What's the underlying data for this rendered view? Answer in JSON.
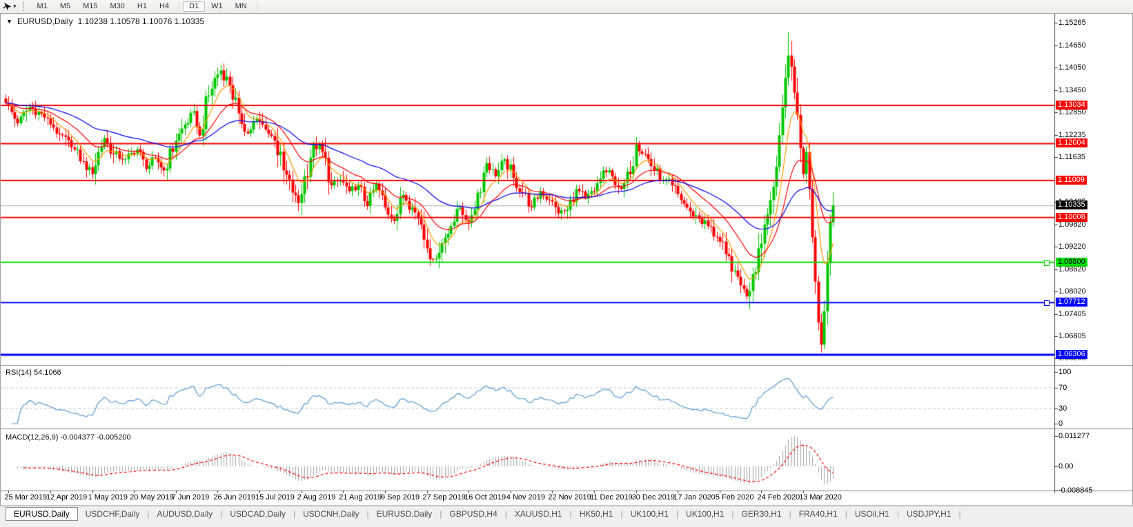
{
  "toolbar": {
    "cursor_tool_icon": "cursor-arrow",
    "dropdown_glyph": "▾",
    "timeframes": [
      "M1",
      "M5",
      "M15",
      "M30",
      "H1",
      "H4",
      "D1",
      "W1",
      "MN"
    ],
    "active_timeframe": "D1"
  },
  "window": {
    "collapse_icon": "▼",
    "title_symbol": "EURUSD,Daily",
    "title_ohlc": "1.10238 1.10578 1.10076 1.10335"
  },
  "price_axis": {
    "ticks": [
      "1.15265",
      "1.14650",
      "1.14050",
      "1.13450",
      "1.12850",
      "1.12235",
      "1.11635",
      "1.10435",
      "1.09820",
      "1.09220",
      "1.08620",
      "1.08020",
      "1.07405",
      "1.06805",
      "1.06205"
    ],
    "current_price_label": "1.10335",
    "current_price_bg": "#000000",
    "current_price_fg": "#ffffff"
  },
  "chart_data": {
    "type": "candlestick",
    "symbol": "EURUSD",
    "timeframe": "Daily",
    "candle_count": 278,
    "ylim": [
      1.0603,
      1.1551
    ],
    "up_color": "#00c800",
    "down_color": "#ff0000",
    "close_anchors": [
      [
        0,
        1.131
      ],
      [
        4,
        1.1255
      ],
      [
        8,
        1.13
      ],
      [
        14,
        1.1268
      ],
      [
        18,
        1.1225
      ],
      [
        22,
        1.119
      ],
      [
        26,
        1.1152
      ],
      [
        29,
        1.1118
      ],
      [
        31,
        1.1178
      ],
      [
        33,
        1.1215
      ],
      [
        36,
        1.1172
      ],
      [
        40,
        1.1158
      ],
      [
        44,
        1.1185
      ],
      [
        47,
        1.1132
      ],
      [
        50,
        1.1162
      ],
      [
        53,
        1.1128
      ],
      [
        57,
        1.1208
      ],
      [
        60,
        1.1252
      ],
      [
        63,
        1.1288
      ],
      [
        65,
        1.1222
      ],
      [
        68,
        1.133
      ],
      [
        70,
        1.1378
      ],
      [
        72,
        1.1398
      ],
      [
        75,
        1.1358
      ],
      [
        78,
        1.1282
      ],
      [
        81,
        1.1228
      ],
      [
        84,
        1.1268
      ],
      [
        87,
        1.1238
      ],
      [
        90,
        1.1208
      ],
      [
        93,
        1.1128
      ],
      [
        96,
        1.1068
      ],
      [
        98,
        1.104
      ],
      [
        100,
        1.1112
      ],
      [
        103,
        1.1198
      ],
      [
        106,
        1.1178
      ],
      [
        109,
        1.1088
      ],
      [
        112,
        1.1102
      ],
      [
        115,
        1.1072
      ],
      [
        118,
        1.1088
      ],
      [
        121,
        1.1032
      ],
      [
        124,
        1.1092
      ],
      [
        127,
        1.1028
      ],
      [
        130,
        1.0992
      ],
      [
        133,
        1.1062
      ],
      [
        136,
        1.1028
      ],
      [
        139,
        1.0982
      ],
      [
        141,
        1.0918
      ],
      [
        143,
        1.0888
      ],
      [
        146,
        1.0932
      ],
      [
        149,
        1.0978
      ],
      [
        152,
        1.1028
      ],
      [
        155,
        1.0988
      ],
      [
        158,
        1.1068
      ],
      [
        161,
        1.1148
      ],
      [
        164,
        1.1112
      ],
      [
        167,
        1.1158
      ],
      [
        170,
        1.1108
      ],
      [
        173,
        1.1068
      ],
      [
        176,
        1.1028
      ],
      [
        179,
        1.1072
      ],
      [
        182,
        1.1048
      ],
      [
        185,
        1.1012
      ],
      [
        188,
        1.1022
      ],
      [
        191,
        1.1078
      ],
      [
        194,
        1.1052
      ],
      [
        197,
        1.1072
      ],
      [
        200,
        1.1128
      ],
      [
        203,
        1.1112
      ],
      [
        206,
        1.1078
      ],
      [
        209,
        1.1118
      ],
      [
        211,
        1.1198
      ],
      [
        214,
        1.1172
      ],
      [
        217,
        1.1128
      ],
      [
        220,
        1.1102
      ],
      [
        223,
        1.1088
      ],
      [
        226,
        1.1048
      ],
      [
        229,
        1.1018
      ],
      [
        232,
        1.0998
      ],
      [
        235,
        1.0978
      ],
      [
        238,
        1.0948
      ],
      [
        241,
        1.0902
      ],
      [
        244,
        1.0858
      ],
      [
        246,
        1.0818
      ],
      [
        248,
        1.0788
      ],
      [
        250,
        1.0848
      ],
      [
        252,
        1.0918
      ],
      [
        254,
        1.0982
      ],
      [
        256,
        1.1048
      ],
      [
        258,
        1.1138
      ],
      [
        260,
        1.1298
      ],
      [
        261,
        1.1378
      ],
      [
        262,
        1.1438
      ],
      [
        263,
        1.1408
      ],
      [
        264,
        1.1338
      ],
      [
        265,
        1.1278
      ],
      [
        266,
        1.1188
      ],
      [
        267,
        1.1118
      ],
      [
        268,
        1.1178
      ],
      [
        269,
        1.1078
      ],
      [
        270,
        1.0948
      ],
      [
        271,
        1.0828
      ],
      [
        272,
        1.0718
      ],
      [
        273,
        1.0658
      ],
      [
        274,
        1.0748
      ],
      [
        275,
        1.0878
      ],
      [
        276,
        1.0988
      ],
      [
        277,
        1.10335
      ]
    ],
    "extreme_wicks": {
      "high_index": 262,
      "high_price": 1.15025,
      "low_index": 273,
      "low_price": 1.0637
    },
    "current_price": 1.10335,
    "moving_averages": [
      {
        "name": "fast",
        "type": "ema",
        "period": 8,
        "color": "#ff9900"
      },
      {
        "name": "medium",
        "type": "ema",
        "period": 20,
        "color": "#ff0000"
      },
      {
        "name": "slow",
        "type": "ema",
        "period": 50,
        "color": "#0000ee"
      }
    ],
    "hlines": [
      {
        "price": 1.13034,
        "label": "1.13034",
        "color": "#ff0000",
        "text_color": "#ffffff",
        "width": 2,
        "handle": false
      },
      {
        "price": 1.12004,
        "label": "1.12004",
        "color": "#ff0000",
        "text_color": "#ffffff",
        "width": 2,
        "handle": false
      },
      {
        "price": 1.11009,
        "label": "1.11009",
        "color": "#ff0000",
        "text_color": "#ffffff",
        "width": 2,
        "handle": false
      },
      {
        "price": 1.10008,
        "label": "1.10008",
        "color": "#ff0000",
        "text_color": "#ffffff",
        "width": 2,
        "handle": false
      },
      {
        "price": 1.088,
        "label": "1.08800",
        "color": "#00dc00",
        "text_color": "#000000",
        "width": 2,
        "handle": true
      },
      {
        "price": 1.07712,
        "label": "1.07712",
        "color": "#0000ff",
        "text_color": "#ffffff",
        "width": 2,
        "handle": true
      },
      {
        "price": 1.06306,
        "label": "1.06306",
        "color": "#0000ff",
        "text_color": "#ffffff",
        "width": 3,
        "handle": false
      }
    ],
    "indicators": {
      "rsi": {
        "label": "RSI(14) 54.1066",
        "period": 14,
        "value": 54.1066,
        "line_color": "#5b9bd1",
        "levels": [
          100,
          70,
          30,
          0
        ],
        "level_labels": [
          "100",
          "70",
          "30",
          "0"
        ],
        "dashed_levels": [
          70,
          30
        ],
        "range": [
          0,
          100
        ]
      },
      "macd": {
        "label": "MACD(12,26,9) -0.004377 -0.005200",
        "fast": 12,
        "slow": 26,
        "signal": 9,
        "values": [
          -0.004377,
          -0.0052
        ],
        "histogram_color": "#a3a3a3",
        "signal_color": "#ff0000",
        "scale_labels": [
          "0.011277",
          "0.00",
          "-0.008845"
        ],
        "scale_values": [
          0.011277,
          0,
          -0.008845
        ]
      }
    },
    "x_labels": [
      "25 Mar 2019",
      "12 Apr 2019",
      "1 May 2019",
      "20 May 2019",
      "7 Jun 2019",
      "26 Jun 2019",
      "15 Jul 2019",
      "2 Aug 2019",
      "21 Aug 2019",
      "9 Sep 2019",
      "27 Sep 2019",
      "16 Oct 2019",
      "4 Nov 2019",
      "22 Nov 2019",
      "11 Dec 2019",
      "30 Dec 2019",
      "17 Jan 2020",
      "5 Feb 2020",
      "24 Feb 2020",
      "13 Mar 2020"
    ]
  },
  "tabs": {
    "items": [
      "EURUSD,Daily",
      "USDCHF,Daily",
      "AUDUSD,Daily",
      "USDCAD,Daily",
      "USDCNH,Daily",
      "EURUSD,Daily",
      "GBPUSD,H4",
      "XAUUSD,H1",
      "HK50,H1",
      "UK100,H1",
      "UK100,H1",
      "GER30,H1",
      "FRA40,H1",
      "USOil,H1",
      "USDJPY,H1"
    ],
    "active_index": 0
  }
}
